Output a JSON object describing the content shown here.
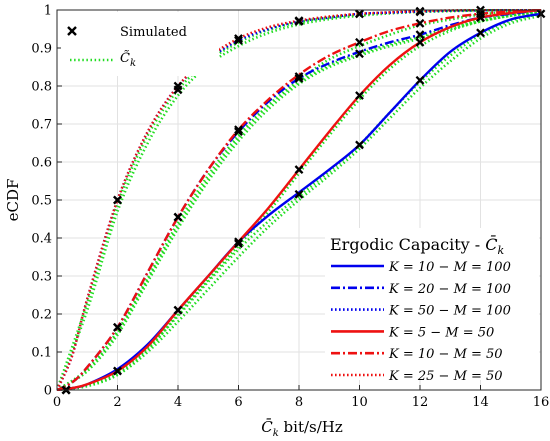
{
  "chart_data": {
    "type": "line",
    "xlabel": "C̄k bit/s/Hz",
    "xlabel_parts": {
      "sym": "C̄",
      "sub": "k",
      "unit": " bit/s/Hz"
    },
    "ylabel": "eCDF",
    "xlim": [
      0,
      16
    ],
    "ylim": [
      0,
      1
    ],
    "xticks": [
      0,
      2,
      4,
      6,
      8,
      10,
      12,
      14,
      16
    ],
    "yticks": [
      0,
      0.1,
      0.2,
      0.3,
      0.4,
      0.5,
      0.6,
      0.7,
      0.8,
      0.9,
      1
    ],
    "ytick_labels": [
      "0",
      "0.1",
      "0.2",
      "0.3",
      "0.4",
      "0.5",
      "0.6",
      "0.7",
      "0.8",
      "0.9",
      "1"
    ],
    "grid": true,
    "legend_main": {
      "placement": "top-left",
      "entries": [
        {
          "label": "Simulated",
          "style": "marker-x",
          "color": "#000000"
        },
        {
          "label": "C̃k",
          "style": "dotted",
          "color": "#22dd22",
          "sym": "C̃",
          "sub": "k"
        }
      ]
    },
    "legend_series": {
      "placement": "bottom-right",
      "title": "Ergodic Capacity - C̄k",
      "title_parts": {
        "text": "Ergodic Capacity - ",
        "sym": "C̄",
        "sub": "k"
      }
    },
    "approx_color": "#22dd22",
    "series": [
      {
        "name": "K = 10 − M = 100",
        "color": "#0000ee",
        "dash": "solid",
        "x": [
          0,
          0.5,
          1,
          2,
          3,
          4,
          5,
          6,
          7,
          8,
          9,
          10,
          11,
          12,
          13,
          14,
          15,
          16
        ],
        "y": [
          0,
          0.005,
          0.015,
          0.055,
          0.12,
          0.21,
          0.3,
          0.39,
          0.46,
          0.52,
          0.58,
          0.645,
          0.73,
          0.815,
          0.89,
          0.94,
          0.975,
          0.99
        ],
        "markers_x": [
          0.3,
          2,
          4,
          6,
          8,
          10,
          12,
          14,
          16
        ],
        "markers_y": [
          0.0,
          0.05,
          0.21,
          0.385,
          0.515,
          0.645,
          0.815,
          0.94,
          0.99
        ]
      },
      {
        "name": "K = 20 − M = 100",
        "color": "#0000ee",
        "dash": "dashdot",
        "x": [
          0,
          0.5,
          1,
          2,
          3,
          4,
          5,
          6,
          7,
          8,
          9,
          10,
          11,
          12,
          13,
          14,
          15,
          16
        ],
        "y": [
          0,
          0.02,
          0.06,
          0.165,
          0.31,
          0.455,
          0.58,
          0.68,
          0.76,
          0.82,
          0.86,
          0.89,
          0.915,
          0.935,
          0.96,
          0.98,
          0.99,
          1
        ],
        "markers_x": [
          0.3,
          2,
          4,
          6,
          8,
          10,
          12,
          14
        ],
        "markers_y": [
          0.0,
          0.165,
          0.455,
          0.68,
          0.82,
          0.885,
          0.935,
          0.98
        ]
      },
      {
        "name": "K = 50 − M = 100",
        "color": "#0000ee",
        "dash": "dotted",
        "x": [
          0,
          0.5,
          1,
          2,
          3,
          4,
          5,
          6,
          7,
          8,
          9,
          10,
          11,
          12,
          13,
          14,
          15,
          16
        ],
        "y": [
          0,
          0.09,
          0.24,
          0.5,
          0.68,
          0.8,
          0.87,
          0.92,
          0.95,
          0.97,
          0.98,
          0.99,
          0.993,
          0.996,
          0.998,
          0.999,
          1,
          1
        ],
        "markers_x": [
          0.3,
          2,
          4,
          6,
          8,
          10,
          12,
          14
        ],
        "markers_y": [
          0.0,
          0.5,
          0.79,
          0.92,
          0.97,
          0.99,
          0.995,
          1.0
        ]
      },
      {
        "name": "K = 5 − M = 50",
        "color": "#ee1111",
        "dash": "solid",
        "x": [
          0,
          0.5,
          1,
          2,
          3,
          4,
          5,
          6,
          7,
          8,
          9,
          10,
          11,
          12,
          13,
          14,
          15,
          16
        ],
        "y": [
          0,
          0.005,
          0.015,
          0.05,
          0.115,
          0.21,
          0.3,
          0.39,
          0.48,
          0.58,
          0.68,
          0.775,
          0.855,
          0.915,
          0.955,
          0.98,
          0.992,
          1
        ],
        "markers_x": [
          0.3,
          2,
          4,
          6,
          8,
          10,
          12,
          14
        ],
        "markers_y": [
          0.0,
          0.05,
          0.21,
          0.39,
          0.58,
          0.775,
          0.915,
          0.98
        ]
      },
      {
        "name": "K = 10 − M = 50",
        "color": "#ee1111",
        "dash": "dashdot",
        "x": [
          0,
          0.5,
          1,
          2,
          3,
          4,
          5,
          6,
          7,
          8,
          9,
          10,
          11,
          12,
          13,
          14,
          15,
          16
        ],
        "y": [
          0,
          0.02,
          0.06,
          0.165,
          0.31,
          0.455,
          0.58,
          0.685,
          0.765,
          0.83,
          0.88,
          0.915,
          0.945,
          0.965,
          0.98,
          0.99,
          0.996,
          1
        ],
        "markers_x": [
          0.3,
          2,
          4,
          6,
          8,
          10,
          12,
          14
        ],
        "markers_y": [
          0.0,
          0.165,
          0.455,
          0.685,
          0.825,
          0.915,
          0.965,
          0.99
        ]
      },
      {
        "name": "K = 25 − M = 50",
        "color": "#ee1111",
        "dash": "dotted",
        "x": [
          0,
          0.5,
          1,
          2,
          3,
          4,
          5,
          6,
          7,
          8,
          9,
          10,
          11,
          12,
          13,
          14,
          15,
          16
        ],
        "y": [
          0,
          0.09,
          0.24,
          0.5,
          0.68,
          0.8,
          0.875,
          0.925,
          0.955,
          0.972,
          0.983,
          0.99,
          0.994,
          0.997,
          0.999,
          1,
          1,
          1
        ],
        "markers_x": [
          0.3,
          2,
          4,
          6,
          8,
          10,
          12
        ],
        "markers_y": [
          0.0,
          0.5,
          0.8,
          0.925,
          0.972,
          0.99,
          0.997
        ]
      }
    ],
    "approx": [
      {
        "x": [
          0,
          1,
          2,
          3,
          4,
          5,
          6,
          7,
          8,
          9,
          10,
          11,
          12,
          13,
          14,
          15,
          16
        ],
        "y": [
          0,
          0.012,
          0.045,
          0.11,
          0.195,
          0.285,
          0.37,
          0.445,
          0.51,
          0.575,
          0.645,
          0.73,
          0.81,
          0.88,
          0.935,
          0.972,
          0.99
        ]
      },
      {
        "x": [
          0,
          1,
          2,
          3,
          4,
          5,
          6,
          7,
          8,
          9,
          10,
          11,
          12,
          13,
          14,
          15,
          16
        ],
        "y": [
          0,
          0.012,
          0.04,
          0.1,
          0.18,
          0.265,
          0.35,
          0.43,
          0.5,
          0.565,
          0.635,
          0.715,
          0.795,
          0.865,
          0.925,
          0.965,
          0.985
        ]
      },
      {
        "x": [
          0,
          1,
          2,
          3,
          4,
          5,
          6,
          7,
          8,
          9,
          10,
          11,
          12,
          13,
          14,
          15,
          16
        ],
        "y": [
          0,
          0.055,
          0.155,
          0.295,
          0.44,
          0.565,
          0.67,
          0.75,
          0.81,
          0.855,
          0.885,
          0.91,
          0.93,
          0.955,
          0.975,
          0.99,
          1
        ]
      },
      {
        "x": [
          0,
          1,
          2,
          3,
          4,
          5,
          6,
          7,
          8,
          9,
          10,
          11,
          12,
          13,
          14,
          15,
          16
        ],
        "y": [
          0,
          0.05,
          0.145,
          0.285,
          0.425,
          0.55,
          0.655,
          0.74,
          0.805,
          0.85,
          0.88,
          0.905,
          0.925,
          0.95,
          0.97,
          0.985,
          0.995
        ]
      },
      {
        "x": [
          0,
          1,
          2,
          3,
          4,
          5,
          6,
          7,
          8,
          9,
          10,
          11,
          12,
          13,
          14,
          15,
          16
        ],
        "y": [
          0,
          0.23,
          0.49,
          0.67,
          0.79,
          0.865,
          0.915,
          0.948,
          0.968,
          0.98,
          0.988,
          0.993,
          0.996,
          0.998,
          0.999,
          1,
          1
        ]
      },
      {
        "x": [
          0,
          1,
          2,
          3,
          4,
          5,
          6,
          7,
          8,
          9,
          10,
          11,
          12,
          13,
          14,
          15,
          16
        ],
        "y": [
          0,
          0.21,
          0.47,
          0.65,
          0.775,
          0.855,
          0.905,
          0.94,
          0.962,
          0.976,
          0.985,
          0.991,
          0.995,
          0.997,
          0.999,
          1,
          1
        ]
      },
      {
        "x": [
          0,
          1,
          2,
          3,
          4,
          5,
          6,
          7,
          8,
          9,
          10,
          11,
          12,
          13,
          14,
          15,
          16
        ],
        "y": [
          0,
          0.01,
          0.04,
          0.105,
          0.2,
          0.29,
          0.38,
          0.47,
          0.57,
          0.67,
          0.765,
          0.845,
          0.905,
          0.945,
          0.97,
          0.985,
          0.995
        ]
      },
      {
        "x": [
          0,
          1,
          2,
          3,
          4,
          5,
          6,
          7,
          8,
          9,
          10,
          11,
          12,
          13,
          14,
          15,
          16
        ],
        "y": [
          0,
          0.05,
          0.15,
          0.29,
          0.43,
          0.555,
          0.665,
          0.75,
          0.815,
          0.87,
          0.905,
          0.935,
          0.96,
          0.975,
          0.988,
          0.995,
          1
        ]
      }
    ]
  }
}
